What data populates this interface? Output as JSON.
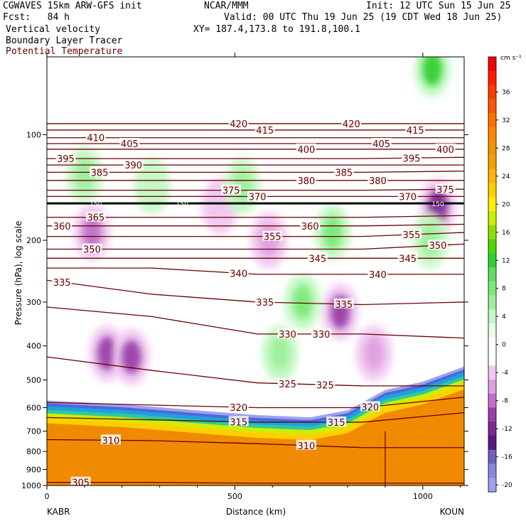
{
  "header": {
    "model": "CGWAVES 15km ARW-GFS init",
    "org": "NCAR/MMM",
    "init": "Init: 12 UTC Sun 15 Jun 25",
    "fcst": "Fcst:   84 h",
    "valid": "Valid: 00 UTC Thu 19 Jun 25 (19 CDT Wed 18 Jun 25)",
    "field1": "Vertical velocity",
    "xy": "XY= 187.4,173.8 to 191.8,100.1",
    "field2": "Boundary Layer Tracer",
    "field3": "Potential Temperature"
  },
  "colors": {
    "theta_line": "#6b0000",
    "pbl_line": "#000000",
    "terrain_fill": "#f08a00"
  },
  "chart_data": {
    "type": "heatmap",
    "xlabel": "Distance (km)",
    "ylabel": "Pressure (hPa), log scale",
    "xlim": [
      0,
      1110
    ],
    "x_ticks": [
      0,
      500,
      1000
    ],
    "y_scale": "log",
    "ylim": [
      1000,
      60
    ],
    "y_ticks": [
      100,
      200,
      300,
      400,
      500,
      600,
      700,
      800,
      900,
      1000
    ],
    "left_endpoint": "KABR",
    "right_endpoint": "KOUN",
    "colorbar": {
      "unit": "cm s⁻¹",
      "tick_values": [
        36,
        32,
        28,
        24,
        20,
        16,
        12,
        8,
        4,
        0,
        -4,
        -8,
        -12,
        -16,
        -20
      ],
      "levels": [
        {
          "value": 40,
          "color": "#f50000"
        },
        {
          "value": 38,
          "color": "#ff1c00"
        },
        {
          "value": 36,
          "color": "#ff3a00"
        },
        {
          "value": 34,
          "color": "#ff5400"
        },
        {
          "value": 32,
          "color": "#ff6f00"
        },
        {
          "value": 30,
          "color": "#ff8600"
        },
        {
          "value": 28,
          "color": "#f29400"
        },
        {
          "value": 26,
          "color": "#f5a200"
        },
        {
          "value": 24,
          "color": "#ffb400"
        },
        {
          "value": 22,
          "color": "#ffd000"
        },
        {
          "value": 20,
          "color": "#ffee00"
        },
        {
          "value": 18,
          "color": "#c8f000"
        },
        {
          "value": 16,
          "color": "#8ae000"
        },
        {
          "value": 14,
          "color": "#4ed600"
        },
        {
          "value": 12,
          "color": "#30d030"
        },
        {
          "value": 10,
          "color": "#5ee05e"
        },
        {
          "value": 8,
          "color": "#7aea7a"
        },
        {
          "value": 6,
          "color": "#9cf09c"
        },
        {
          "value": 4,
          "color": "#c4f8c4"
        },
        {
          "value": 2,
          "color": "#e8fce8"
        },
        {
          "value": 0,
          "color": "#ffffff"
        },
        {
          "value": -2,
          "color": "#ffffff"
        },
        {
          "value": -4,
          "color": "#f0c8f0"
        },
        {
          "value": -6,
          "color": "#e0a0e0"
        },
        {
          "value": -8,
          "color": "#c070c8"
        },
        {
          "value": -10,
          "color": "#9a40a8"
        },
        {
          "value": -12,
          "color": "#7a2890"
        },
        {
          "value": -14,
          "color": "#5a1880"
        },
        {
          "value": -16,
          "color": "#7060c0"
        },
        {
          "value": -18,
          "color": "#8888e0"
        },
        {
          "value": -20,
          "color": "#a0a0f0"
        }
      ]
    },
    "theta_contours": [
      {
        "theta": 305,
        "label_x": 90,
        "p": [
          980,
          980,
          985,
          985,
          985
        ]
      },
      {
        "theta": 310,
        "label_x": 170,
        "p": [
          740,
          745,
          760,
          780,
          780
        ]
      },
      {
        "theta": 310,
        "label_x": 690,
        "p": [
          740,
          745,
          760,
          780,
          780
        ]
      },
      {
        "theta": 315,
        "label_x": 510,
        "p": [
          640,
          650,
          660,
          660,
          620
        ]
      },
      {
        "theta": 315,
        "label_x": 770,
        "p": [
          640,
          650,
          660,
          660,
          620
        ]
      },
      {
        "theta": 320,
        "label_x": 510,
        "p": [
          580,
          590,
          600,
          600,
          560
        ]
      },
      {
        "theta": 320,
        "label_x": 860,
        "p": [
          580,
          590,
          600,
          600,
          560
        ]
      },
      {
        "theta": 325,
        "label_x": 640,
        "p": [
          430,
          470,
          510,
          520,
          520
        ]
      },
      {
        "theta": 325,
        "label_x": 740,
        "p": [
          430,
          470,
          510,
          520,
          520
        ]
      },
      {
        "theta": 330,
        "label_x": 640,
        "p": [
          310,
          330,
          370,
          370,
          380
        ]
      },
      {
        "theta": 330,
        "label_x": 730,
        "p": [
          310,
          330,
          370,
          370,
          380
        ]
      },
      {
        "theta": 335,
        "label_x": 40,
        "p": [
          260,
          285,
          300,
          305,
          300
        ]
      },
      {
        "theta": 335,
        "label_x": 580,
        "p": [
          260,
          285,
          300,
          305,
          300
        ]
      },
      {
        "theta": 335,
        "label_x": 790,
        "p": [
          260,
          285,
          300,
          305,
          300
        ]
      },
      {
        "theta": 340,
        "label_x": 510,
        "p": [
          240,
          240,
          250,
          250,
          250
        ]
      },
      {
        "theta": 340,
        "label_x": 880,
        "p": [
          240,
          240,
          250,
          250,
          250
        ]
      },
      {
        "theta": 345,
        "label_x": 720,
        "p": [
          225,
          225,
          225,
          225,
          225
        ]
      },
      {
        "theta": 345,
        "label_x": 960,
        "p": [
          225,
          225,
          225,
          225,
          225
        ]
      },
      {
        "theta": 350,
        "label_x": 120,
        "p": [
          212,
          212,
          212,
          212,
          205
        ]
      },
      {
        "theta": 350,
        "label_x": 1040,
        "p": [
          212,
          212,
          212,
          212,
          205
        ]
      },
      {
        "theta": 355,
        "label_x": 600,
        "p": [
          195,
          195,
          195,
          195,
          190
        ]
      },
      {
        "theta": 355,
        "label_x": 970,
        "p": [
          195,
          195,
          195,
          195,
          190
        ]
      },
      {
        "theta": 360,
        "label_x": 40,
        "p": [
          182,
          182,
          182,
          182,
          180
        ]
      },
      {
        "theta": 360,
        "label_x": 700,
        "p": [
          182,
          182,
          182,
          182,
          180
        ]
      },
      {
        "theta": 365,
        "label_x": 130,
        "p": [
          172,
          172,
          172,
          172,
          170
        ]
      },
      {
        "theta": 370,
        "label_x": 560,
        "p": [
          150,
          150,
          150,
          150,
          150
        ]
      },
      {
        "theta": 370,
        "label_x": 960,
        "p": [
          150,
          150,
          150,
          150,
          150
        ]
      },
      {
        "theta": 375,
        "label_x": 490,
        "p": [
          144,
          144,
          144,
          144,
          143
        ]
      },
      {
        "theta": 375,
        "label_x": 1060,
        "p": [
          144,
          144,
          144,
          144,
          143
        ]
      },
      {
        "theta": 380,
        "label_x": 690,
        "p": [
          135,
          135,
          135,
          135,
          135
        ]
      },
      {
        "theta": 380,
        "label_x": 880,
        "p": [
          135,
          135,
          135,
          135,
          135
        ]
      },
      {
        "theta": 385,
        "label_x": 140,
        "p": [
          128,
          128,
          128,
          128,
          127
        ]
      },
      {
        "theta": 385,
        "label_x": 790,
        "p": [
          128,
          128,
          128,
          128,
          127
        ]
      },
      {
        "theta": 390,
        "label_x": 230,
        "p": [
          122,
          122,
          122,
          122,
          122
        ]
      },
      {
        "theta": 395,
        "label_x": 50,
        "p": [
          117,
          117,
          117,
          117,
          116
        ]
      },
      {
        "theta": 395,
        "label_x": 970,
        "p": [
          117,
          117,
          117,
          117,
          116
        ]
      },
      {
        "theta": 400,
        "label_x": 690,
        "p": [
          110,
          110,
          110,
          110,
          110
        ]
      },
      {
        "theta": 400,
        "label_x": 1060,
        "p": [
          110,
          110,
          110,
          110,
          110
        ]
      },
      {
        "theta": 405,
        "label_x": 220,
        "p": [
          106,
          106,
          106,
          106,
          106
        ]
      },
      {
        "theta": 405,
        "label_x": 890,
        "p": [
          106,
          106,
          106,
          106,
          106
        ]
      },
      {
        "theta": 410,
        "label_x": 130,
        "p": [
          102,
          102,
          102,
          102,
          102
        ]
      },
      {
        "theta": 415,
        "label_x": 580,
        "p": [
          97,
          97,
          97,
          97,
          97
        ]
      },
      {
        "theta": 415,
        "label_x": 980,
        "p": [
          97,
          97,
          97,
          97,
          97
        ]
      },
      {
        "theta": 420,
        "label_x": 510,
        "p": [
          93,
          93,
          93,
          93,
          93
        ]
      },
      {
        "theta": 420,
        "label_x": 810,
        "p": [
          93,
          93,
          93,
          93,
          93
        ]
      }
    ],
    "contour_x": [
      0,
      280,
      560,
      840,
      1110
    ],
    "thick_line": {
      "label": "150",
      "p": 157
    },
    "terrain_p": [
      [
        0,
        600
      ],
      [
        200,
        615
      ],
      [
        400,
        640
      ],
      [
        560,
        660
      ],
      [
        700,
        670
      ],
      [
        800,
        640
      ],
      [
        900,
        560
      ],
      [
        1000,
        530
      ],
      [
        1110,
        480
      ]
    ],
    "updrafts": [
      {
        "x": 120,
        "p": 190,
        "w": -8
      },
      {
        "x": 160,
        "p": 420,
        "w": -10
      },
      {
        "x": 225,
        "p": 430,
        "w": -10
      },
      {
        "x": 460,
        "p": 160,
        "w": -4
      },
      {
        "x": 590,
        "p": 200,
        "w": -6
      },
      {
        "x": 780,
        "p": 320,
        "w": -10
      },
      {
        "x": 870,
        "p": 420,
        "w": -6
      },
      {
        "x": 1040,
        "p": 160,
        "w": -12
      },
      {
        "x": 680,
        "p": 300,
        "w": 8
      },
      {
        "x": 620,
        "p": 420,
        "w": 6
      },
      {
        "x": 760,
        "p": 190,
        "w": 8
      },
      {
        "x": 1020,
        "p": 200,
        "w": 6
      },
      {
        "x": 100,
        "p": 130,
        "w": 6
      },
      {
        "x": 280,
        "p": 140,
        "w": 4
      },
      {
        "x": 520,
        "p": 140,
        "w": 6
      },
      {
        "x": 1025,
        "p": 65,
        "w": 12
      }
    ]
  }
}
